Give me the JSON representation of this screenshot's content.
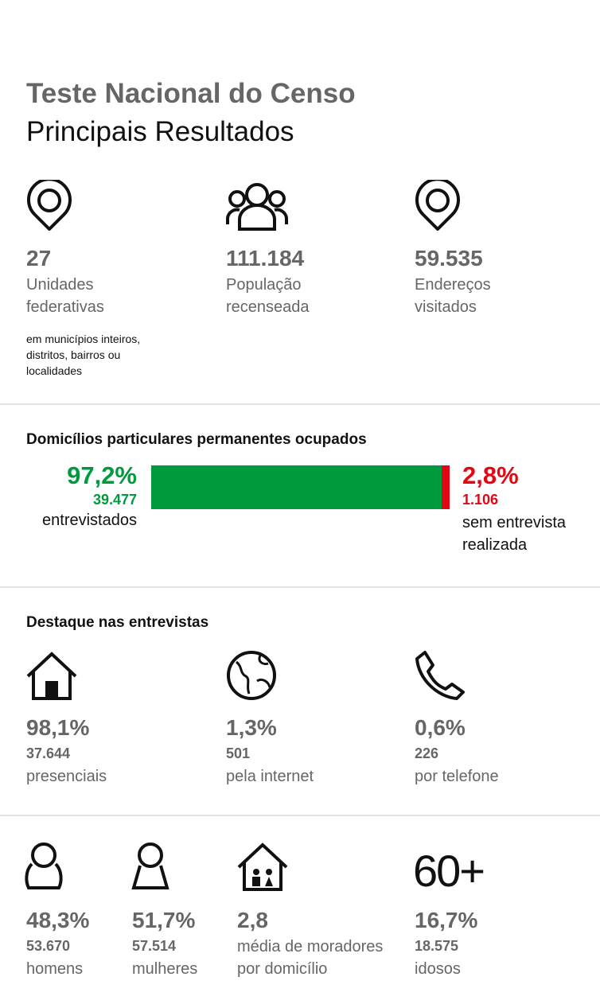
{
  "header": {
    "title": "Teste Nacional do Censo",
    "subtitle": "Principais Resultados"
  },
  "summary": [
    {
      "value": "27",
      "label": "Unidades federativas",
      "note": "em municípios inteiros, distritos, bairros ou localidades"
    },
    {
      "value": "111.184",
      "label": "População recenseada"
    },
    {
      "value": "59.535",
      "label": "Endereços visitados"
    }
  ],
  "households": {
    "title": "Domicílios particulares permanentes ocupados",
    "segments": [
      {
        "value": 97.2,
        "value_label": "97,2%",
        "count": "39.477",
        "label": "entrevistados",
        "color": "#009a3e"
      },
      {
        "value": 2.8,
        "value_label": "2,8%",
        "count": "1.106",
        "label": "sem entrevista realizada",
        "color": "#e30613"
      }
    ]
  },
  "interviews": {
    "title": "Destaque nas entrevistas",
    "items": [
      {
        "value": "98,1%",
        "count": "37.644",
        "label": "presenciais"
      },
      {
        "value": "1,3%",
        "count": "501",
        "label": "pela internet"
      },
      {
        "value": "0,6%",
        "count": "226",
        "label": "por telefone"
      }
    ]
  },
  "demographics": [
    {
      "value": "48,3%",
      "count": "53.670",
      "label": "homens"
    },
    {
      "value": "51,7%",
      "count": "57.514",
      "label": "mulheres"
    },
    {
      "value": "2,8",
      "label": "média de moradores por domicílio"
    },
    {
      "icon_text": "60+",
      "value": "16,7%",
      "count": "18.575",
      "label": "idosos"
    }
  ]
}
